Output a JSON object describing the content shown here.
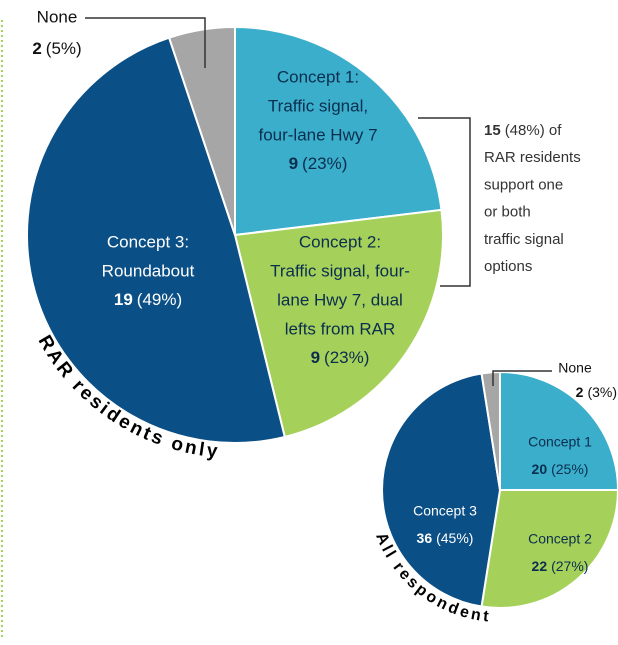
{
  "chart_data": [
    {
      "type": "pie",
      "title": "RAR residents only",
      "categories": [
        [
          "Concept 1:",
          "Traffic signal,",
          "four-lane Hwy 7"
        ],
        [
          "Concept 2:",
          "Traffic signal, four-",
          "lane Hwy 7, dual",
          "lefts from RAR"
        ],
        [
          "Concept 3:",
          "Roundabout"
        ],
        [
          "None"
        ]
      ],
      "values": [
        9,
        9,
        19,
        2
      ],
      "share_labels": [
        "(23%)",
        "(23%)",
        "(49%)",
        "(5%)"
      ],
      "colors": [
        "#3aaecb",
        "#a5d15a",
        "#0a4f86",
        "#a6a6a6"
      ],
      "annotation_bold": "15",
      "annotation": [
        "(48%) of",
        "RAR residents",
        "support one",
        "or both",
        "traffic signal",
        "options"
      ]
    },
    {
      "type": "pie",
      "title": "All respondents",
      "categories": [
        [
          "Concept 1"
        ],
        [
          "Concept 2"
        ],
        [
          "Concept 3"
        ],
        [
          "None"
        ]
      ],
      "values": [
        20,
        22,
        36,
        2
      ],
      "share_labels": [
        "(25%)",
        "(27%)",
        "(45%)",
        "(3%)"
      ],
      "colors": [
        "#3aaecb",
        "#a5d15a",
        "#0a4f86",
        "#a6a6a6"
      ]
    }
  ]
}
